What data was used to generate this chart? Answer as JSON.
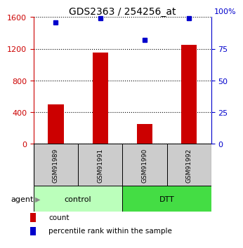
{
  "title": "GDS2363 / 254256_at",
  "samples": [
    "GSM91989",
    "GSM91991",
    "GSM91990",
    "GSM91992"
  ],
  "counts": [
    500,
    1150,
    250,
    1250
  ],
  "percentiles": [
    96,
    99,
    82,
    99
  ],
  "ylim_left": [
    0,
    1600
  ],
  "ylim_right": [
    0,
    100
  ],
  "yticks_left": [
    0,
    400,
    800,
    1200,
    1600
  ],
  "yticks_right": [
    0,
    25,
    50,
    75
  ],
  "bar_color": "#cc0000",
  "dot_color": "#0000cc",
  "groups": [
    {
      "label": "control",
      "span": [
        0,
        1
      ],
      "color": "#bbffbb"
    },
    {
      "label": "DTT",
      "span": [
        2,
        3
      ],
      "color": "#44dd44"
    }
  ],
  "sample_box_color": "#cccccc",
  "agent_label": "agent",
  "legend_count_label": "count",
  "legend_pct_label": "percentile rank within the sample",
  "title_fontsize": 10,
  "tick_fontsize": 8,
  "bar_width": 0.35
}
